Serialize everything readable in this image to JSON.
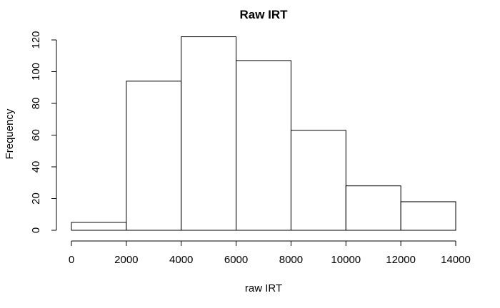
{
  "chart_data": {
    "type": "bar",
    "subtype": "histogram",
    "title": "Raw IRT",
    "xlabel": "raw IRT",
    "ylabel": "Frequency",
    "bins": [
      {
        "start": 0,
        "end": 2000,
        "value": 5
      },
      {
        "start": 2000,
        "end": 4000,
        "value": 94
      },
      {
        "start": 4000,
        "end": 6000,
        "value": 122
      },
      {
        "start": 6000,
        "end": 8000,
        "value": 107
      },
      {
        "start": 8000,
        "end": 10000,
        "value": 63
      },
      {
        "start": 10000,
        "end": 12000,
        "value": 28
      },
      {
        "start": 12000,
        "end": 14000,
        "value": 18
      }
    ],
    "xlim": [
      0,
      14000
    ],
    "ylim": [
      0,
      120
    ],
    "x_ticks": [
      "0",
      "2000",
      "4000",
      "6000",
      "8000",
      "10000",
      "12000",
      "14000"
    ],
    "y_ticks": [
      "0",
      "20",
      "40",
      "60",
      "80",
      "100",
      "120"
    ],
    "bar_fill": "#ffffff",
    "bar_stroke": "#000000",
    "grid": false,
    "legend": "none"
  }
}
